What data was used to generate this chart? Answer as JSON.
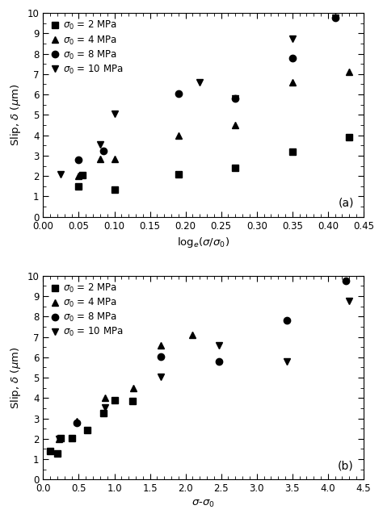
{
  "panel_a": {
    "xlabel": "log$_e$($\\sigma$/$\\sigma_0$)",
    "ylabel": "Slip, $\\delta$ ($\\mu$m)",
    "xlim": [
      0,
      0.45
    ],
    "ylim": [
      0,
      10
    ],
    "xticks": [
      0,
      0.05,
      0.1,
      0.15,
      0.2,
      0.25,
      0.3,
      0.35,
      0.4,
      0.45
    ],
    "yticks": [
      0,
      1,
      2,
      3,
      4,
      5,
      6,
      7,
      8,
      9,
      10
    ],
    "label": "(a)",
    "series": {
      "sq": {
        "label": "$\\sigma_0$ = 2 MPa",
        "marker": "s",
        "x": [
          0.05,
          0.055,
          0.1,
          0.19,
          0.27,
          0.35,
          0.43
        ],
        "y": [
          1.5,
          2.05,
          1.35,
          2.1,
          2.4,
          3.2,
          3.9
        ]
      },
      "tri_up": {
        "label": "$\\sigma_0$ = 4 MPa",
        "marker": "^",
        "x": [
          0.05,
          0.08,
          0.1,
          0.19,
          0.27,
          0.35,
          0.43
        ],
        "y": [
          2.0,
          2.85,
          2.85,
          4.0,
          4.5,
          6.6,
          7.1
        ]
      },
      "circ": {
        "label": "$\\sigma_0$ = 8 MPa",
        "marker": "o",
        "x": [
          0.05,
          0.085,
          0.19,
          0.27,
          0.35,
          0.41
        ],
        "y": [
          2.8,
          3.25,
          6.05,
          5.8,
          7.8,
          9.75
        ]
      },
      "tri_down": {
        "label": "$\\sigma_0$ = 10 MPa",
        "marker": "v",
        "x": [
          0.025,
          0.08,
          0.1,
          0.22,
          0.27,
          0.35,
          0.41
        ],
        "y": [
          2.1,
          3.55,
          5.05,
          6.6,
          5.8,
          8.75,
          9.75
        ]
      }
    }
  },
  "panel_b": {
    "xlabel": "$\\sigma$-$\\sigma_0$",
    "ylabel": "Slip, $\\delta$ ($\\mu$m)",
    "xlim": [
      0,
      4.5
    ],
    "ylim": [
      0,
      10
    ],
    "xticks": [
      0,
      0.5,
      1.0,
      1.5,
      2.0,
      2.5,
      3.0,
      3.5,
      4.0,
      4.5
    ],
    "yticks": [
      0,
      1,
      2,
      3,
      4,
      5,
      6,
      7,
      8,
      9,
      10
    ],
    "label": "(b)",
    "series": {
      "sq": {
        "label": "$\\sigma_0$ = 2 MPa",
        "marker": "s",
        "x": [
          0.1,
          0.2,
          0.25,
          0.4,
          0.62,
          0.85,
          1.0,
          1.25
        ],
        "y": [
          1.4,
          1.3,
          2.05,
          2.05,
          2.45,
          3.25,
          3.9,
          3.85
        ]
      },
      "tri_up": {
        "label": "$\\sigma_0$ = 4 MPa",
        "marker": "^",
        "x": [
          0.22,
          0.47,
          0.87,
          1.27,
          1.65,
          2.1
        ],
        "y": [
          2.0,
          2.85,
          4.0,
          4.5,
          6.6,
          7.1
        ]
      },
      "circ": {
        "label": "$\\sigma_0$ = 8 MPa",
        "marker": "o",
        "x": [
          0.47,
          1.65,
          2.47,
          3.42,
          4.25
        ],
        "y": [
          2.8,
          6.05,
          5.8,
          7.8,
          9.75
        ]
      },
      "tri_down": {
        "label": "$\\sigma_0$ = 10 MPa",
        "marker": "v",
        "x": [
          0.22,
          0.87,
          1.65,
          2.47,
          3.42,
          4.3
        ],
        "y": [
          2.0,
          3.55,
          5.05,
          6.6,
          5.8,
          8.75
        ]
      }
    }
  },
  "marker_size": 6,
  "marker_color": "black",
  "legend_fontsize": 8.5,
  "axis_fontsize": 9.5,
  "tick_fontsize": 8.5,
  "label_fontsize": 10
}
